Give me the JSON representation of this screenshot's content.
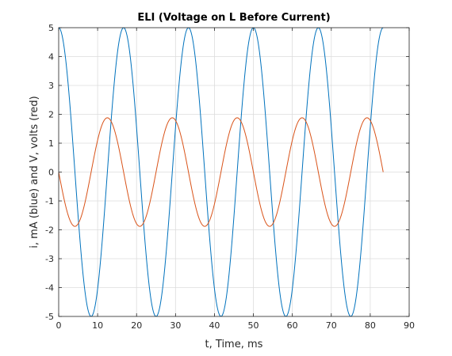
{
  "chart_data": {
    "type": "line",
    "title": "ELI (Voltage on L Before Current)",
    "xlabel": "t, Time, ms",
    "ylabel": "i, mA (blue) and V, volts (red)",
    "xlim": [
      0,
      90
    ],
    "ylim": [
      -5,
      5
    ],
    "xticks": [
      0,
      10,
      20,
      30,
      40,
      50,
      60,
      70,
      80,
      90
    ],
    "yticks": [
      -5,
      -4,
      -3,
      -2,
      -1,
      0,
      1,
      2,
      3,
      4,
      5
    ],
    "grid": true,
    "series": [
      {
        "color": "#0072BD",
        "x": [
          0,
          4.17,
          8.33,
          12.5,
          16.67,
          20.83,
          25,
          29.17,
          33.33,
          37.5,
          41.67,
          45.83,
          50,
          54.17,
          58.33,
          62.5,
          66.67,
          70.83,
          75,
          79.17,
          83.33
        ],
        "y": [
          5,
          0,
          -5,
          0,
          5,
          0,
          -5,
          0,
          5,
          0,
          -5,
          0,
          5,
          0,
          -5,
          0,
          5,
          0,
          -5,
          0,
          5
        ]
      },
      {
        "color": "#D95319",
        "x": [
          0,
          4.17,
          8.33,
          12.5,
          16.67,
          20.83,
          25,
          29.17,
          33.33,
          37.5,
          41.67,
          45.83,
          50,
          54.17,
          58.33,
          62.5,
          66.67,
          70.83,
          75,
          79.17,
          83.33
        ],
        "y": [
          0,
          -1.88,
          0,
          1.88,
          0,
          -1.88,
          0,
          1.88,
          0,
          -1.88,
          0,
          1.88,
          0,
          -1.88,
          0,
          1.88,
          0,
          -1.88,
          0,
          1.88,
          0
        ]
      }
    ]
  }
}
